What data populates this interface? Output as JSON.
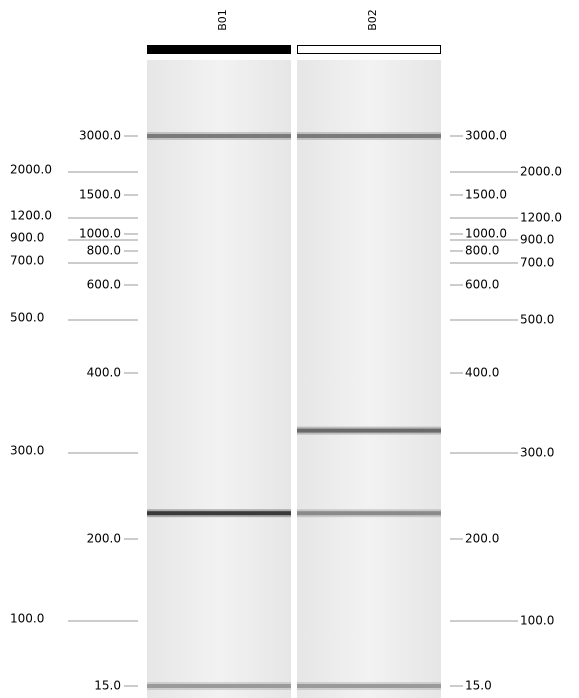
{
  "chart_data": {
    "type": "gel",
    "lanes": [
      {
        "label": "B01",
        "color": "#000000",
        "bands": [
          3000,
          230,
          15
        ],
        "band_colors": [
          "#7a7a7a",
          "#3a3a3a",
          "#9a9a9a"
        ]
      },
      {
        "label": "B02",
        "color": "#ffffff",
        "bands": [
          3000,
          328,
          230,
          15
        ],
        "band_colors": [
          "#7a7a7a",
          "#6a6a6a",
          "#8a8a8a",
          "#9a9a9a"
        ]
      }
    ],
    "yticks": [
      {
        "value": 15,
        "label": "15.0"
      },
      {
        "value": 100,
        "label": "100.0"
      },
      {
        "value": 200,
        "label": "200.0"
      },
      {
        "value": 300,
        "label": "300.0"
      },
      {
        "value": 400,
        "label": "400.0"
      },
      {
        "value": 500,
        "label": "500.0"
      },
      {
        "value": 600,
        "label": "600.0"
      },
      {
        "value": 700,
        "label": "700.0"
      },
      {
        "value": 800,
        "label": "800.0"
      },
      {
        "value": 900,
        "label": "900.0"
      },
      {
        "value": 1000,
        "label": "1000.0"
      },
      {
        "value": 1200,
        "label": "1200.0"
      },
      {
        "value": 1500,
        "label": "1500.0"
      },
      {
        "value": 2000,
        "label": "2000.0"
      },
      {
        "value": 3000,
        "label": "3000.0"
      }
    ]
  }
}
